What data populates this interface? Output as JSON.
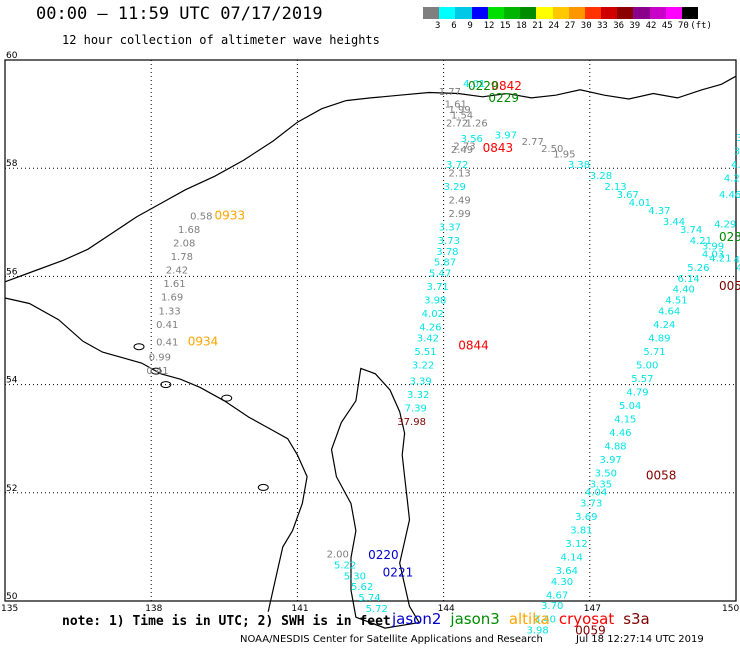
{
  "header": {
    "title": "00:00 – 11:59 UTC 07/17/2019",
    "subtitle": "12 hour collection of altimeter wave heights"
  },
  "legend": {
    "unit": "(ft)",
    "labels": [
      "3",
      "6",
      "9",
      "12",
      "15",
      "18",
      "21",
      "24",
      "27",
      "30",
      "33",
      "36",
      "39",
      "42",
      "45",
      "70"
    ],
    "colors": [
      "#7f7f7f",
      "#00ffff",
      "#00c8e6",
      "#0000ff",
      "#00e000",
      "#00b400",
      "#008c00",
      "#ffff00",
      "#ffc800",
      "#ff9600",
      "#ff3200",
      "#d00000",
      "#8b0000",
      "#8b008b",
      "#c800c8",
      "#ff00ff",
      "#000000"
    ]
  },
  "axes": {
    "lon_labels": [
      "135",
      "138",
      "141",
      "144",
      "147",
      "150"
    ],
    "lat_labels": [
      "60",
      "58",
      "56",
      "54",
      "52",
      "50"
    ]
  },
  "colors": {
    "jason2": "#0000cc",
    "jason3": "#008c00",
    "altika": "#ffa500",
    "cryosat": "#ff0000",
    "s3a": "#800000",
    "value_gray": "#7f7f7f",
    "value_cyan": "#00e6e6",
    "coast": "#000000"
  },
  "tracks": [
    {
      "sat": "altika",
      "time": "0933",
      "tlat": 57.05,
      "tlon": 139.3,
      "points": [
        {
          "lat": 57.05,
          "lon": 138.8,
          "v": "0.58",
          "c": "gray"
        },
        {
          "lat": 56.8,
          "lon": 138.55,
          "v": "1.68",
          "c": "gray"
        },
        {
          "lat": 56.55,
          "lon": 138.45,
          "v": "2.08",
          "c": "gray"
        },
        {
          "lat": 56.3,
          "lon": 138.4,
          "v": "1.78",
          "c": "gray"
        },
        {
          "lat": 56.05,
          "lon": 138.3,
          "v": "2.42",
          "c": "gray"
        },
        {
          "lat": 55.8,
          "lon": 138.25,
          "v": "1.61",
          "c": "gray"
        },
        {
          "lat": 55.55,
          "lon": 138.2,
          "v": "1.69",
          "c": "gray"
        },
        {
          "lat": 55.3,
          "lon": 138.15,
          "v": "1.33",
          "c": "gray"
        },
        {
          "lat": 55.05,
          "lon": 138.1,
          "v": "0.41",
          "c": "gray"
        }
      ]
    },
    {
      "sat": "altika",
      "time": "0934",
      "tlat": 54.72,
      "tlon": 138.75,
      "points": [
        {
          "lat": 54.72,
          "lon": 138.1,
          "v": "0.41",
          "c": "gray"
        },
        {
          "lat": 54.45,
          "lon": 137.95,
          "v": "0.99",
          "c": "gray"
        },
        {
          "lat": 54.2,
          "lon": 137.9,
          "v": "0.41",
          "c": "gray"
        }
      ]
    },
    {
      "sat": "cryosat",
      "time": "0842",
      "tlat": 59.45,
      "tlon": 144.98,
      "points": [
        {
          "lat": 59.35,
          "lon": 143.9,
          "v": "1.77",
          "c": "gray"
        },
        {
          "lat": 59.12,
          "lon": 144.02,
          "v": "1.61",
          "c": "gray"
        },
        {
          "lat": 59.02,
          "lon": 144.1,
          "v": "1.99",
          "c": "gray"
        },
        {
          "lat": 58.92,
          "lon": 144.15,
          "v": "1.54",
          "c": "gray"
        },
        {
          "lat": 58.77,
          "lon": 144.05,
          "v": "2.72",
          "c": "gray"
        },
        {
          "lat": 58.77,
          "lon": 144.45,
          "v": "1.26",
          "c": "gray"
        }
      ]
    },
    {
      "sat": "cryosat",
      "time": "0843",
      "tlat": 58.3,
      "tlon": 144.8,
      "points": [
        {
          "lat": 58.35,
          "lon": 144.2,
          "v": "2.73",
          "c": "gray"
        },
        {
          "lat": 58.28,
          "lon": 144.15,
          "v": "2.49",
          "c": "gray"
        },
        {
          "lat": 57.85,
          "lon": 144.1,
          "v": "2.13",
          "c": "gray"
        },
        {
          "lat": 57.35,
          "lon": 144.1,
          "v": "2.49",
          "c": "gray"
        },
        {
          "lat": 57.1,
          "lon": 144.1,
          "v": "2.99",
          "c": "gray"
        }
      ]
    },
    {
      "sat": "cryosat",
      "time": "0844",
      "tlat": 54.65,
      "tlon": 144.3,
      "points": [
        {
          "lat": 58.0,
          "lon": 144.05,
          "v": "3.72",
          "c": "cyan"
        },
        {
          "lat": 57.6,
          "lon": 144.0,
          "v": "3.29",
          "c": "cyan"
        },
        {
          "lat": 56.85,
          "lon": 143.9,
          "v": "3.37",
          "c": "cyan"
        },
        {
          "lat": 56.6,
          "lon": 143.88,
          "v": "3.73",
          "c": "cyan"
        },
        {
          "lat": 56.4,
          "lon": 143.85,
          "v": "3.78",
          "c": "cyan"
        },
        {
          "lat": 56.2,
          "lon": 143.8,
          "v": "5.87",
          "c": "cyan"
        },
        {
          "lat": 56.0,
          "lon": 143.7,
          "v": "5.47",
          "c": "cyan"
        },
        {
          "lat": 55.75,
          "lon": 143.65,
          "v": "3.71",
          "c": "cyan"
        },
        {
          "lat": 55.5,
          "lon": 143.6,
          "v": "3.98",
          "c": "cyan"
        },
        {
          "lat": 55.25,
          "lon": 143.55,
          "v": "4.02",
          "c": "cyan"
        },
        {
          "lat": 55.0,
          "lon": 143.5,
          "v": "4.26",
          "c": "cyan"
        },
        {
          "lat": 54.8,
          "lon": 143.45,
          "v": "3.42",
          "c": "cyan"
        },
        {
          "lat": 54.55,
          "lon": 143.4,
          "v": "5.51",
          "c": "cyan"
        },
        {
          "lat": 54.3,
          "lon": 143.35,
          "v": "3.22",
          "c": "cyan"
        },
        {
          "lat": 54.0,
          "lon": 143.3,
          "v": "3.39",
          "c": "cyan"
        },
        {
          "lat": 53.75,
          "lon": 143.25,
          "v": "3.32",
          "c": "cyan"
        },
        {
          "lat": 53.5,
          "lon": 143.2,
          "v": "7.39",
          "c": "cyan"
        },
        {
          "lat": 53.25,
          "lon": 143.05,
          "v": "37.98",
          "c": "s3a"
        }
      ]
    },
    {
      "sat": "jason3",
      "time": "0229",
      "tlat": 59.45,
      "tlon": 144.5,
      "points": [
        {
          "lat": 59.5,
          "lon": 144.4,
          "v": "4.01",
          "c": "cyan"
        },
        {
          "lat": 58.48,
          "lon": 144.35,
          "v": "3.56",
          "c": "cyan"
        },
        {
          "lat": 58.55,
          "lon": 145.05,
          "v": "3.97",
          "c": "cyan"
        }
      ]
    },
    {
      "sat": "jason3",
      "time": "0229",
      "tlat": 59.22,
      "tlon": 144.92,
      "points": [
        {
          "lat": 58.43,
          "lon": 145.6,
          "v": "2.77",
          "c": "gray"
        },
        {
          "lat": 58.3,
          "lon": 146.0,
          "v": "2.50",
          "c": "gray"
        },
        {
          "lat": 58.2,
          "lon": 146.25,
          "v": "1.95",
          "c": "gray"
        },
        {
          "lat": 58.0,
          "lon": 146.55,
          "v": "3.38",
          "c": "cyan"
        },
        {
          "lat": 57.8,
          "lon": 147.0,
          "v": "3.28",
          "c": "cyan"
        },
        {
          "lat": 57.6,
          "lon": 147.3,
          "v": "2.13",
          "c": "cyan"
        },
        {
          "lat": 57.45,
          "lon": 147.55,
          "v": "3.67",
          "c": "cyan"
        },
        {
          "lat": 57.3,
          "lon": 147.8,
          "v": "4.01",
          "c": "cyan"
        },
        {
          "lat": 57.15,
          "lon": 148.2,
          "v": "4.37",
          "c": "cyan"
        },
        {
          "lat": 56.95,
          "lon": 148.5,
          "v": "3.44",
          "c": "cyan"
        },
        {
          "lat": 56.8,
          "lon": 148.85,
          "v": "3.74",
          "c": "cyan"
        },
        {
          "lat": 56.6,
          "lon": 149.05,
          "v": "4.21",
          "c": "cyan"
        }
      ]
    },
    {
      "sat": "jason3",
      "time": "0230",
      "tlat": 56.65,
      "tlon": 149.65,
      "points": [
        {
          "lat": 58.5,
          "lon": 150.0,
          "v": "3",
          "c": "cyan"
        },
        {
          "lat": 58.25,
          "lon": 149.95,
          "v": "3.8",
          "c": "cyan"
        },
        {
          "lat": 58.0,
          "lon": 149.9,
          "v": "4.56",
          "c": "cyan"
        },
        {
          "lat": 57.75,
          "lon": 149.75,
          "v": "4.29",
          "c": "cyan"
        },
        {
          "lat": 57.45,
          "lon": 149.65,
          "v": "4.46",
          "c": "cyan"
        },
        {
          "lat": 56.9,
          "lon": 149.55,
          "v": "4.29",
          "c": "cyan"
        },
        {
          "lat": 56.5,
          "lon": 149.3,
          "v": "3.99",
          "c": "cyan"
        },
        {
          "lat": 56.35,
          "lon": 149.3,
          "v": "4.03",
          "c": "cyan"
        },
        {
          "lat": 56.28,
          "lon": 149.45,
          "v": "4.21",
          "c": "cyan"
        },
        {
          "lat": 56.25,
          "lon": 149.95,
          "v": "4.55",
          "c": "cyan"
        },
        {
          "lat": 56.1,
          "lon": 150.0,
          "v": "4.33",
          "c": "cyan"
        }
      ]
    },
    {
      "sat": "s3a",
      "time": "0057",
      "tlat": 55.75,
      "tlon": 149.65,
      "points": [
        {
          "lat": 56.1,
          "lon": 149.0,
          "v": "5.26",
          "c": "cyan"
        },
        {
          "lat": 55.9,
          "lon": 148.8,
          "v": "6.14",
          "c": "cyan"
        },
        {
          "lat": 55.7,
          "lon": 148.7,
          "v": "4.40",
          "c": "cyan"
        },
        {
          "lat": 55.5,
          "lon": 148.55,
          "v": "4.51",
          "c": "cyan"
        },
        {
          "lat": 55.3,
          "lon": 148.4,
          "v": "4.64",
          "c": "cyan"
        },
        {
          "lat": 55.05,
          "lon": 148.3,
          "v": "4.24",
          "c": "cyan"
        },
        {
          "lat": 54.8,
          "lon": 148.2,
          "v": "4.89",
          "c": "cyan"
        },
        {
          "lat": 54.55,
          "lon": 148.1,
          "v": "5.71",
          "c": "cyan"
        },
        {
          "lat": 54.3,
          "lon": 147.95,
          "v": "5.00",
          "c": "cyan"
        },
        {
          "lat": 54.05,
          "lon": 147.85,
          "v": "5.57",
          "c": "cyan"
        },
        {
          "lat": 53.8,
          "lon": 147.75,
          "v": "4.79",
          "c": "cyan"
        },
        {
          "lat": 53.55,
          "lon": 147.6,
          "v": "5.04",
          "c": "cyan"
        },
        {
          "lat": 53.3,
          "lon": 147.5,
          "v": "4.15",
          "c": "cyan"
        },
        {
          "lat": 53.05,
          "lon": 147.4,
          "v": "4.46",
          "c": "cyan"
        },
        {
          "lat": 52.8,
          "lon": 147.3,
          "v": "4.88",
          "c": "cyan"
        },
        {
          "lat": 52.55,
          "lon": 147.2,
          "v": "3.97",
          "c": "cyan"
        },
        {
          "lat": 52.3,
          "lon": 147.1,
          "v": "3.50",
          "c": "cyan"
        }
      ]
    },
    {
      "sat": "s3a",
      "time": "0058",
      "tlat": 52.25,
      "tlon": 148.15,
      "points": [
        {
          "lat": 52.1,
          "lon": 147.0,
          "v": "3.35",
          "c": "cyan"
        },
        {
          "lat": 51.95,
          "lon": 146.9,
          "v": "4.04",
          "c": "cyan"
        },
        {
          "lat": 51.75,
          "lon": 146.8,
          "v": "3.73",
          "c": "cyan"
        },
        {
          "lat": 51.5,
          "lon": 146.7,
          "v": "3.69",
          "c": "cyan"
        },
        {
          "lat": 51.25,
          "lon": 146.6,
          "v": "3.81",
          "c": "cyan"
        },
        {
          "lat": 51.0,
          "lon": 146.5,
          "v": "3.12",
          "c": "cyan"
        },
        {
          "lat": 50.75,
          "lon": 146.4,
          "v": "4.14",
          "c": "cyan"
        },
        {
          "lat": 50.5,
          "lon": 146.3,
          "v": "3.64",
          "c": "cyan"
        },
        {
          "lat": 50.3,
          "lon": 146.2,
          "v": "4.30",
          "c": "cyan"
        },
        {
          "lat": 50.05,
          "lon": 146.1,
          "v": "4.67",
          "c": "cyan"
        },
        {
          "lat": 49.85,
          "lon": 146.0,
          "v": "3.70",
          "c": "cyan"
        },
        {
          "lat": 49.6,
          "lon": 145.85,
          "v": "3.40",
          "c": "cyan"
        },
        {
          "lat": 49.4,
          "lon": 145.7,
          "v": "3.98",
          "c": "cyan"
        }
      ]
    },
    {
      "sat": "s3a",
      "time": "0059",
      "tlat": 49.38,
      "tlon": 146.7,
      "points": []
    },
    {
      "sat": "jason2",
      "time": "0220",
      "tlat": 50.78,
      "tlon": 142.45,
      "points": [
        {
          "lat": 50.8,
          "lon": 141.6,
          "v": "2.00",
          "c": "gray"
        },
        {
          "lat": 50.6,
          "lon": 141.75,
          "v": "5.22",
          "c": "cyan"
        },
        {
          "lat": 50.4,
          "lon": 141.95,
          "v": "5.30",
          "c": "cyan"
        },
        {
          "lat": 50.2,
          "lon": 142.1,
          "v": "5.62",
          "c": "cyan"
        },
        {
          "lat": 50.0,
          "lon": 142.25,
          "v": "5.74",
          "c": "cyan"
        },
        {
          "lat": 49.8,
          "lon": 142.4,
          "v": "5.72",
          "c": "cyan"
        }
      ]
    },
    {
      "sat": "jason2",
      "time": "0221",
      "tlat": 50.45,
      "tlon": 142.75,
      "points": []
    }
  ],
  "note": "note: 1) Time is in UTC; 2) SWH is in feet",
  "satellites": [
    {
      "name": "jason2",
      "color": "#0000cc"
    },
    {
      "name": "jason3",
      "color": "#008c00"
    },
    {
      "name": "altika",
      "color": "#ffa500"
    },
    {
      "name": "cryosat",
      "color": "#ff0000"
    },
    {
      "name": "s3a",
      "color": "#800000"
    }
  ],
  "footer": {
    "credit": "NOAA/NESDIS Center for Satellite Applications and Research",
    "timestamp": "Jul 18 12:27:14 UTC 2019"
  }
}
